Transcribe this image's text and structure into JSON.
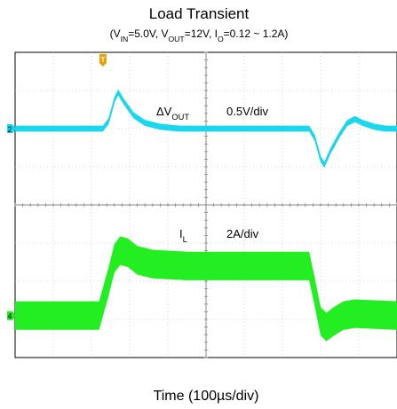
{
  "chart_data": {
    "type": "line",
    "title": "Load Transient",
    "subtitle": {
      "parts": [
        {
          "t": "(V"
        },
        {
          "t": "IN",
          "sub": true
        },
        {
          "t": "=5.0V, V"
        },
        {
          "t": "OUT",
          "sub": true
        },
        {
          "t": "=12V, I"
        },
        {
          "t": "O",
          "sub": true
        },
        {
          "t": "=0.12 ~ 1.2A)"
        }
      ]
    },
    "xlabel": "Time (100µs/div)",
    "grid": true,
    "divisions": {
      "x": 10,
      "y": 8
    },
    "trigger_marker": {
      "label": "T",
      "color": "#e8a000",
      "time_div": 2.3
    },
    "series": [
      {
        "name_parts": [
          {
            "t": "ΔV"
          },
          {
            "t": "OUT",
            "sub": true
          }
        ],
        "scale": "0.5V/div",
        "channel": "2",
        "color": "#1ad7ee",
        "ground_div": 2.0,
        "noise_div": 0.16,
        "points": [
          [
            0,
            2.0
          ],
          [
            2.3,
            2.0
          ],
          [
            2.45,
            1.8
          ],
          [
            2.6,
            1.25
          ],
          [
            2.7,
            1.05
          ],
          [
            2.85,
            1.3
          ],
          [
            3.1,
            1.65
          ],
          [
            3.4,
            1.85
          ],
          [
            3.8,
            1.95
          ],
          [
            4.3,
            2.0
          ],
          [
            7.7,
            2.0
          ],
          [
            7.85,
            2.25
          ],
          [
            8.0,
            2.8
          ],
          [
            8.1,
            2.95
          ],
          [
            8.25,
            2.6
          ],
          [
            8.5,
            2.15
          ],
          [
            8.7,
            1.85
          ],
          [
            8.9,
            1.75
          ],
          [
            9.1,
            1.85
          ],
          [
            9.4,
            1.95
          ],
          [
            9.7,
            2.0
          ],
          [
            10,
            2.0
          ]
        ]
      },
      {
        "name_parts": [
          {
            "t": "I"
          },
          {
            "t": "L",
            "sub": true
          }
        ],
        "scale": "2A/div",
        "channel": "4",
        "color": "#22ee22",
        "ground_div": 6.9,
        "noise_div": 0.75,
        "points": [
          [
            0,
            6.9
          ],
          [
            2.2,
            6.9
          ],
          [
            2.45,
            6.0
          ],
          [
            2.6,
            5.4
          ],
          [
            2.75,
            5.2
          ],
          [
            2.95,
            5.25
          ],
          [
            3.2,
            5.45
          ],
          [
            3.6,
            5.55
          ],
          [
            4.5,
            5.6
          ],
          [
            7.7,
            5.6
          ],
          [
            7.85,
            6.3
          ],
          [
            8.0,
            7.05
          ],
          [
            8.15,
            7.2
          ],
          [
            8.35,
            7.05
          ],
          [
            8.6,
            6.9
          ],
          [
            8.9,
            6.85
          ],
          [
            10,
            6.9
          ]
        ]
      }
    ]
  }
}
